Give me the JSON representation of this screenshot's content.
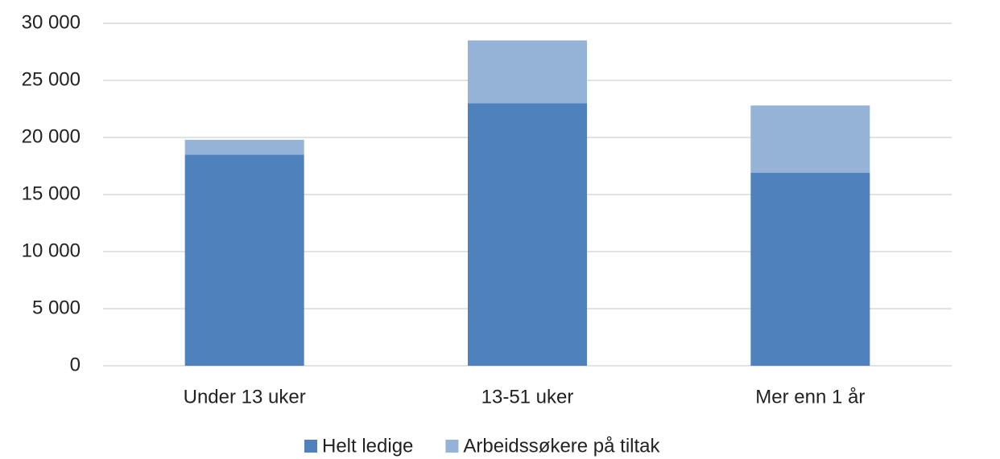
{
  "chart_data": {
    "type": "stacked_bar",
    "categories": [
      "Under 13 uker",
      "13-51 uker",
      "Mer enn 1 år"
    ],
    "series": [
      {
        "name": "Helt ledige",
        "color": "#4f81bd",
        "values": [
          18500,
          23000,
          16900
        ]
      },
      {
        "name": "Arbeidssøkere på tiltak",
        "color": "#95b3d7",
        "values": [
          1300,
          5500,
          5900
        ]
      }
    ],
    "ylim": [
      0,
      30000
    ],
    "yticks": [
      0,
      {
        "value": 5000,
        "label": "5 000"
      },
      {
        "value": 10000,
        "label": "10 000"
      },
      {
        "value": 15000,
        "label": "15 000"
      },
      {
        "value": 20000,
        "label": "20 000"
      },
      {
        "value": 25000,
        "label": "25 000"
      },
      {
        "value": 30000,
        "label": "30 000"
      }
    ],
    "grid": true,
    "legend": "bottom"
  }
}
